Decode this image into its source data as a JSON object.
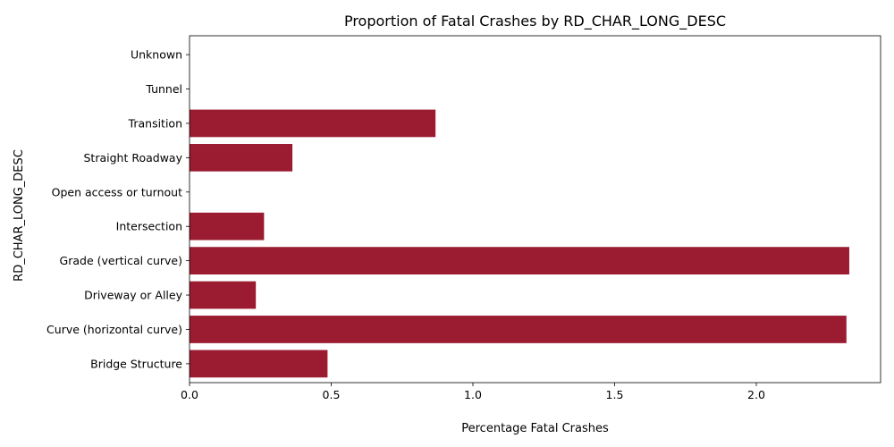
{
  "chart_data": {
    "type": "bar",
    "orientation": "horizontal",
    "title": "Proportion of Fatal Crashes by RD_CHAR_LONG_DESC",
    "xlabel": "Percentage Fatal Crashes",
    "ylabel": "RD_CHAR_LONG_DESC",
    "categories": [
      "Bridge Structure",
      "Curve (horizontal curve)",
      "Driveway or Alley",
      "Grade (vertical curve)",
      "Intersection",
      "Open access or turnout",
      "Straight Roadway",
      "Transition",
      "Tunnel",
      "Unknown"
    ],
    "values": [
      0.487,
      2.318,
      0.234,
      2.328,
      0.263,
      0.0,
      0.363,
      0.868,
      0.0,
      0.0
    ],
    "xlim": [
      0,
      2.4385
    ],
    "xticks": [
      0.0,
      0.5,
      1.0,
      1.5,
      2.0
    ],
    "xtick_labels": [
      "0.0",
      "0.5",
      "1.0",
      "1.5",
      "2.0"
    ],
    "bar_color": "#9b1b30",
    "grid": false
  }
}
